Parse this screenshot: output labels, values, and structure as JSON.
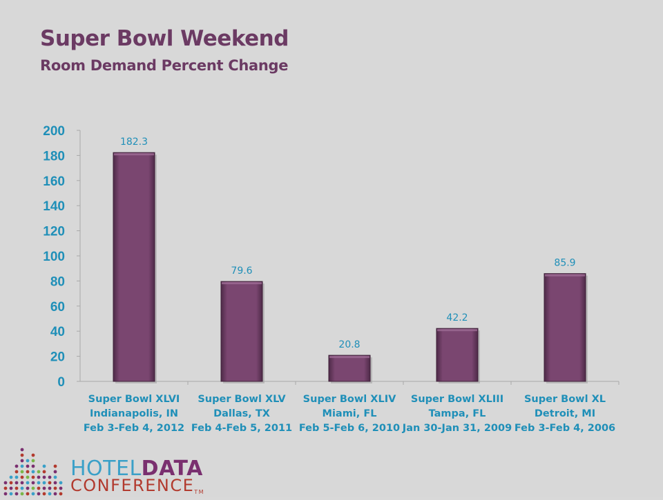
{
  "title": "Super Bowl Weekend",
  "subtitle": "Room Demand Percent Change",
  "colors": {
    "bar": "#7a4670",
    "axis_text": "#1f8fb8",
    "title": "#6b3a63"
  },
  "chart_data": {
    "type": "bar",
    "categories": [
      [
        "Super Bowl XLVI",
        "Indianapolis, IN",
        "Feb 3-Feb 4, 2012"
      ],
      [
        "Super Bowl XLV",
        "Dallas, TX",
        "Feb 4-Feb 5, 2011"
      ],
      [
        "Super Bowl XLIV",
        "Miami, FL",
        "Feb 5-Feb 6, 2010"
      ],
      [
        "Super Bowl XLIII",
        "Tampa, FL",
        "Jan 30-Jan 31, 2009"
      ],
      [
        "Super Bowl XL",
        "Detroit, MI",
        "Feb 3-Feb 4, 2006"
      ]
    ],
    "values": [
      182.3,
      79.6,
      20.8,
      42.2,
      85.9
    ],
    "value_labels": [
      "182.3",
      "79.6",
      "20.8",
      "42.2",
      "85.9"
    ],
    "yticks": [
      "0",
      "20",
      "40",
      "60",
      "80",
      "100",
      "120",
      "140",
      "160",
      "180",
      "200"
    ],
    "ylim": [
      0,
      200
    ],
    "xlabel": "",
    "ylabel": "",
    "grid": false,
    "legend": "none"
  },
  "logo": {
    "word1": "HOTEL",
    "word2": "DATA",
    "word3": "CONFERENCE",
    "tm": "TM"
  }
}
